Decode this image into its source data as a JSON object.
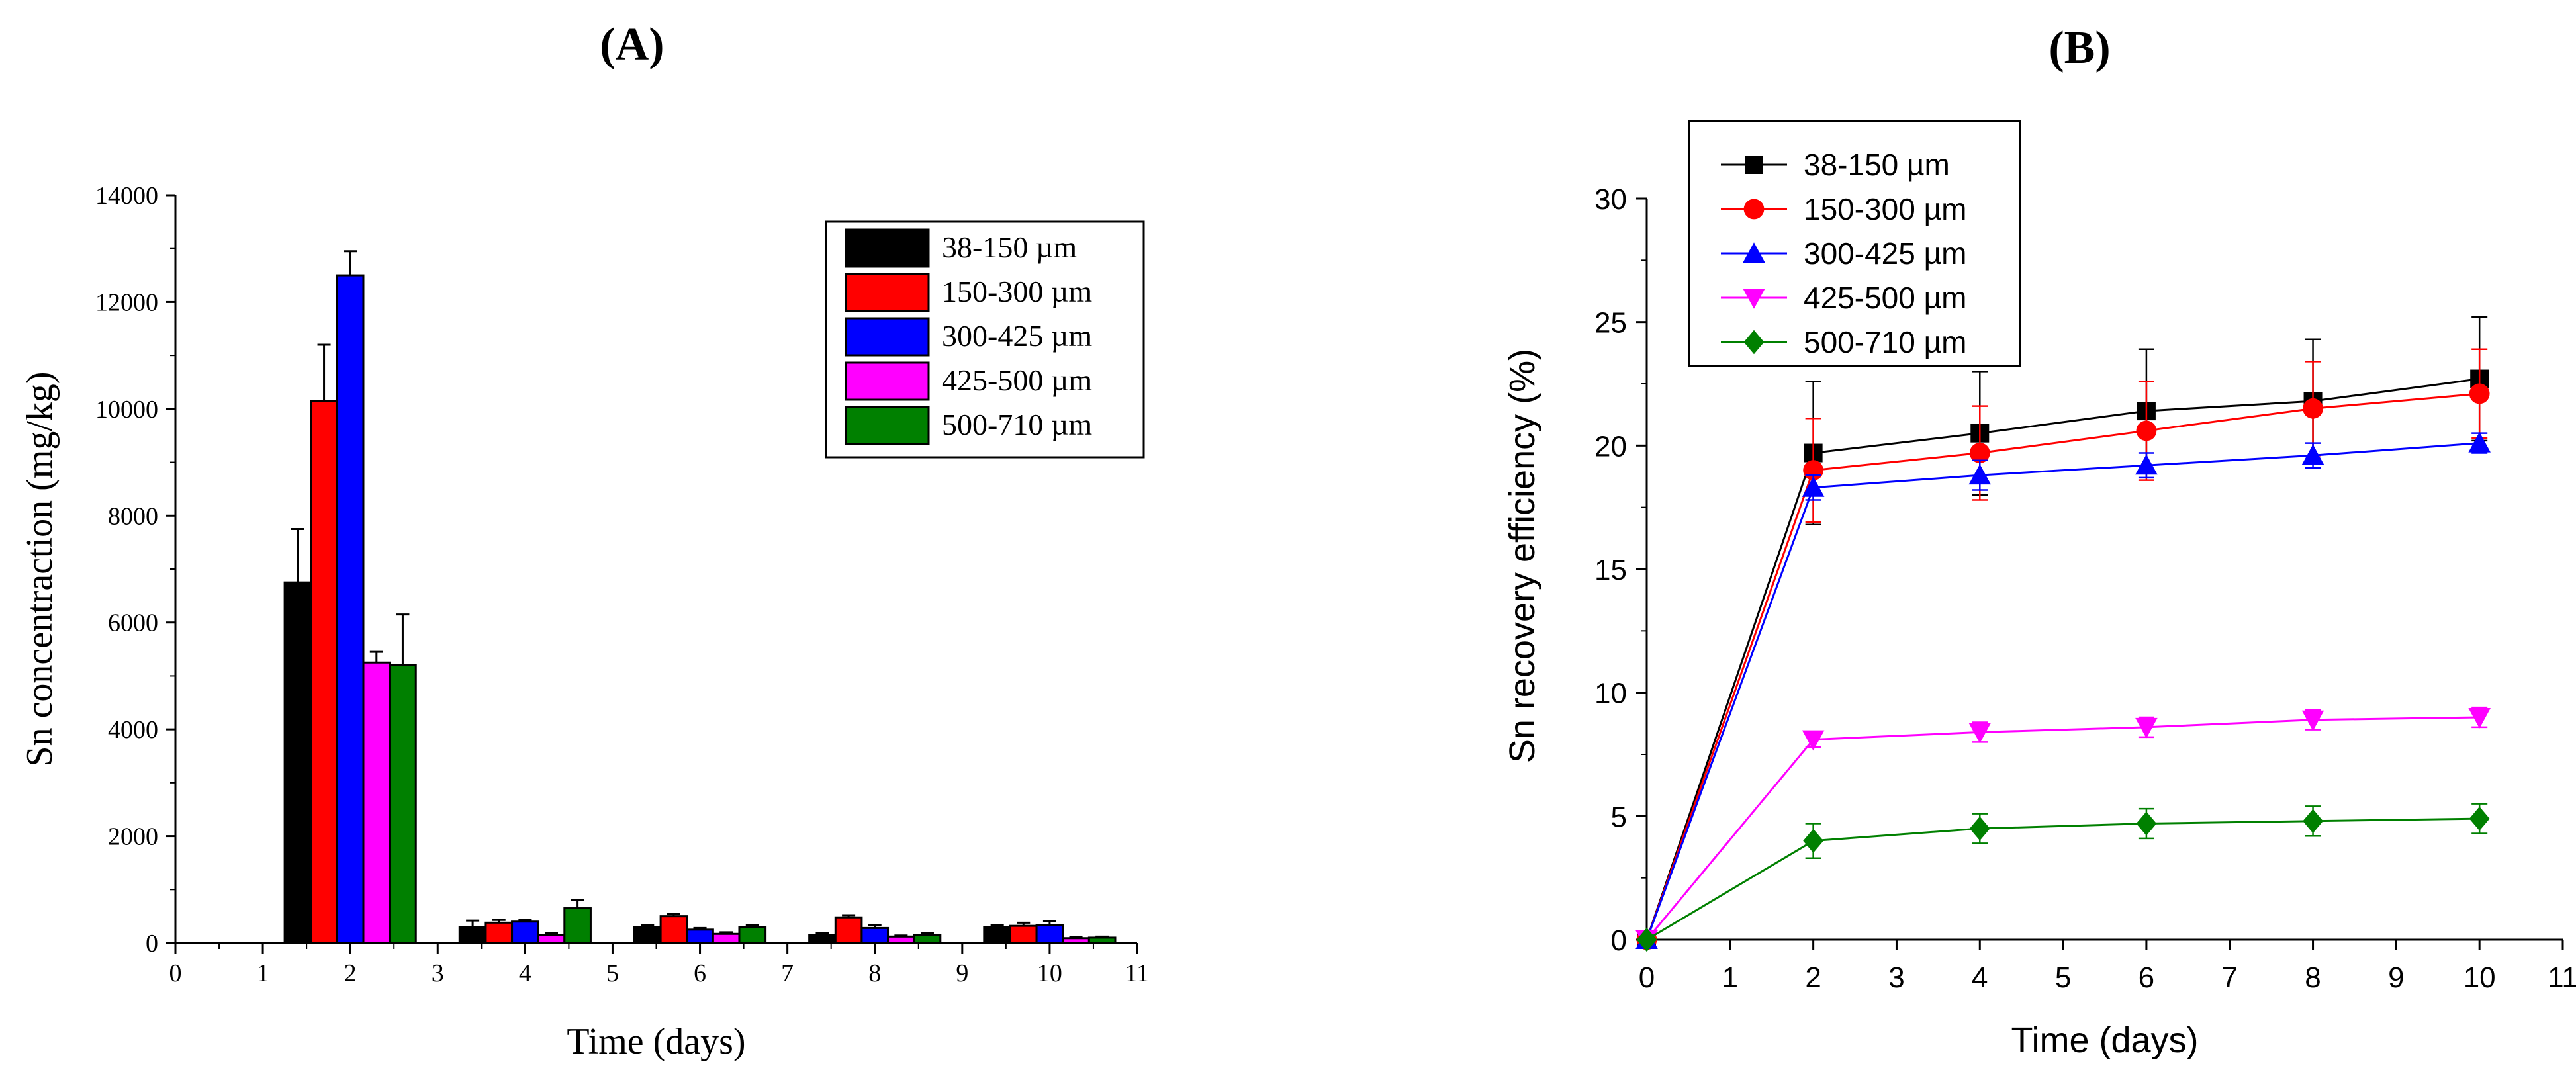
{
  "chart_data": [
    {
      "panel": "(A)",
      "type": "bar",
      "xlabel": "Time (days)",
      "ylabel": "Sn concentraction (mg/kg)",
      "xlim": [
        0,
        11
      ],
      "ylim": [
        0,
        14000
      ],
      "xticks": [
        "0",
        "1",
        "2",
        "3",
        "4",
        "5",
        "6",
        "7",
        "8",
        "9",
        "10",
        "11"
      ],
      "yticks": [
        "0",
        "2000",
        "4000",
        "6000",
        "8000",
        "10000",
        "12000",
        "14000"
      ],
      "categories": [
        "2",
        "4",
        "6",
        "8",
        "10"
      ],
      "legend_position": "top-right",
      "series": [
        {
          "name": "38-150 µm",
          "color": "#000000",
          "values": [
            6750,
            300,
            300,
            150,
            300
          ],
          "errors": [
            1000,
            120,
            40,
            30,
            40
          ]
        },
        {
          "name": "150-300 µm",
          "color": "#ff0000",
          "values": [
            10150,
            380,
            500,
            480,
            320
          ],
          "errors": [
            1050,
            50,
            50,
            40,
            60
          ]
        },
        {
          "name": "300-425 µm",
          "color": "#0000ff",
          "values": [
            12500,
            400,
            250,
            280,
            330
          ],
          "errors": [
            450,
            30,
            30,
            60,
            80
          ]
        },
        {
          "name": "425-500 µm",
          "color": "#ff00ff",
          "values": [
            5250,
            150,
            170,
            120,
            90
          ],
          "errors": [
            200,
            30,
            30,
            20,
            20
          ]
        },
        {
          "name": "500-710 µm",
          "color": "#008000",
          "values": [
            5200,
            650,
            300,
            150,
            100
          ],
          "errors": [
            950,
            150,
            40,
            30,
            20
          ]
        }
      ]
    },
    {
      "panel": "(B)",
      "type": "line",
      "xlabel": "Time (days)",
      "ylabel": "Sn recovery efficiency (%)",
      "xlim": [
        0,
        11
      ],
      "ylim": [
        0,
        30
      ],
      "xticks": [
        "0",
        "1",
        "2",
        "3",
        "4",
        "5",
        "6",
        "7",
        "8",
        "9",
        "10",
        "11"
      ],
      "yticks": [
        "0",
        "5",
        "10",
        "15",
        "20",
        "25",
        "30"
      ],
      "x": [
        0,
        2,
        4,
        6,
        8,
        10
      ],
      "legend_position": "top-left",
      "series": [
        {
          "name": "38-150 µm",
          "color": "#000000",
          "marker": "square",
          "values": [
            0,
            19.7,
            20.5,
            21.4,
            21.8,
            22.7
          ],
          "errors": [
            0,
            2.9,
            2.5,
            2.5,
            2.5,
            2.5
          ]
        },
        {
          "name": "150-300 µm",
          "color": "#ff0000",
          "marker": "circle",
          "values": [
            0,
            19.0,
            19.7,
            20.6,
            21.5,
            22.1
          ],
          "errors": [
            0,
            2.1,
            1.9,
            2.0,
            1.9,
            1.8
          ]
        },
        {
          "name": "300-425 µm",
          "color": "#0000ff",
          "marker": "triangle-up",
          "values": [
            0,
            18.3,
            18.8,
            19.2,
            19.6,
            20.1
          ],
          "errors": [
            0,
            0.5,
            0.6,
            0.5,
            0.5,
            0.4
          ]
        },
        {
          "name": "425-500  µm",
          "color": "#ff00ff",
          "marker": "triangle-down",
          "values": [
            0,
            8.1,
            8.4,
            8.6,
            8.9,
            9.0
          ],
          "errors": [
            0,
            0.3,
            0.4,
            0.4,
            0.4,
            0.4
          ]
        },
        {
          "name": "500-710 µm",
          "color": "#008000",
          "marker": "diamond",
          "values": [
            0,
            4.0,
            4.5,
            4.7,
            4.8,
            4.9
          ],
          "errors": [
            0,
            0.7,
            0.6,
            0.6,
            0.6,
            0.6
          ]
        }
      ]
    }
  ]
}
